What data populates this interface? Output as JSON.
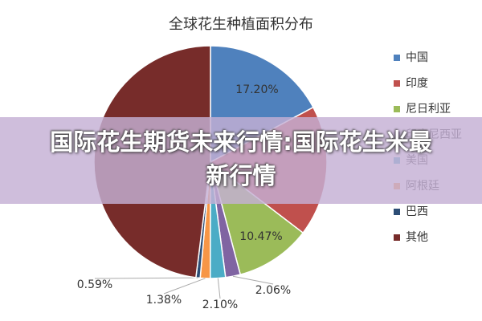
{
  "chart_data": {
    "type": "pie",
    "title": "全球花生种植面积分布",
    "categories": [
      "中国",
      "印度",
      "尼日利亚",
      "印度尼西亚",
      "美国",
      "阿根廷",
      "巴西",
      "其他"
    ],
    "values": [
      17.2,
      18.2,
      10.47,
      2.06,
      2.1,
      1.38,
      0.59,
      48.0
    ],
    "value_labels": [
      "17.20%",
      null,
      "10.47%",
      "2.06%",
      "2.10%",
      "1.38%",
      "0.59%",
      null
    ],
    "colors": [
      "#4f81bd",
      "#c0504d",
      "#9bbb59",
      "#8064a2",
      "#4bacc6",
      "#f79646",
      "#2c4d75",
      "#772c2a"
    ],
    "legend": "right"
  },
  "banner": "国际花生期货未来行情:国际花生米最新行情"
}
